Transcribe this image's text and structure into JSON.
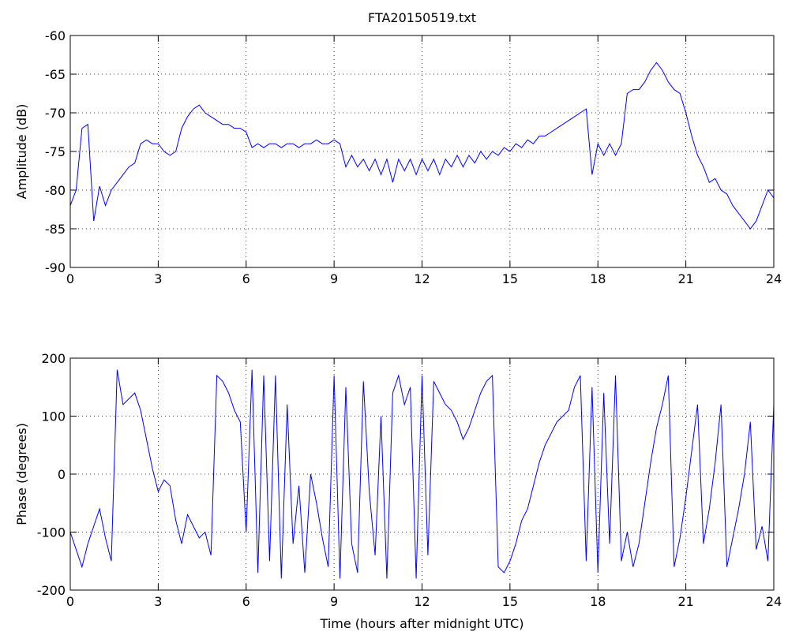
{
  "chart_data": [
    {
      "type": "line",
      "title": "FTA20150519.txt",
      "ylabel": "Amplitude (dB)",
      "color": "#0000ff",
      "grid": true,
      "x": [
        0,
        0.2,
        0.4,
        0.6,
        0.8,
        1,
        1.2,
        1.4,
        1.6,
        1.8,
        2,
        2.2,
        2.4,
        2.6,
        2.8,
        3,
        3.2,
        3.4,
        3.6,
        3.8,
        4,
        4.2,
        4.4,
        4.6,
        4.8,
        5,
        5.2,
        5.4,
        5.6,
        5.8,
        6,
        6.2,
        6.4,
        6.6,
        6.8,
        7,
        7.2,
        7.4,
        7.6,
        7.8,
        8,
        8.2,
        8.4,
        8.6,
        8.8,
        9,
        9.2,
        9.4,
        9.6,
        9.8,
        10,
        10.2,
        10.4,
        10.6,
        10.8,
        11,
        11.2,
        11.4,
        11.6,
        11.8,
        12,
        12.2,
        12.4,
        12.6,
        12.8,
        13,
        13.2,
        13.4,
        13.6,
        13.8,
        14,
        14.2,
        14.4,
        14.6,
        14.8,
        15,
        15.2,
        15.4,
        15.6,
        15.8,
        16,
        16.2,
        16.4,
        16.6,
        16.8,
        17,
        17.2,
        17.4,
        17.6,
        17.8,
        18,
        18.2,
        18.4,
        18.6,
        18.8,
        19,
        19.2,
        19.4,
        19.6,
        19.8,
        20,
        20.2,
        20.4,
        20.6,
        20.8,
        21,
        21.2,
        21.4,
        21.6,
        21.8,
        22,
        22.2,
        22.4,
        22.6,
        22.8,
        23,
        23.2,
        23.4,
        23.6,
        23.8,
        24
      ],
      "values": [
        -82,
        -80,
        -72,
        -71.5,
        -84,
        -79.5,
        -82,
        -80,
        -79,
        -78,
        -77,
        -76.5,
        -74,
        -73.5,
        -74,
        -74,
        -75,
        -75.5,
        -75,
        -72,
        -70.5,
        -69.5,
        -69,
        -70,
        -70.5,
        -71,
        -71.5,
        -71.5,
        -72,
        -72,
        -72.5,
        -74.5,
        -74,
        -74.5,
        -74,
        -74,
        -74.5,
        -74,
        -74,
        -74.5,
        -74,
        -74,
        -73.5,
        -74,
        -74,
        -73.5,
        -74,
        -77,
        -75.5,
        -77,
        -76,
        -77.5,
        -76,
        -78,
        -76,
        -79,
        -76,
        -77.5,
        -76,
        -78,
        -76,
        -77.5,
        -76,
        -78,
        -76,
        -77,
        -75.5,
        -77,
        -75.5,
        -76.5,
        -75,
        -76,
        -75,
        -75.5,
        -74.5,
        -75,
        -74,
        -74.5,
        -73.5,
        -74,
        -73,
        -73,
        -72.5,
        -72,
        -71.5,
        -71,
        -70.5,
        -70,
        -69.5,
        -78,
        -74,
        -75.5,
        -74,
        -75.5,
        -74,
        -67.5,
        -67,
        -67,
        -66,
        -64.5,
        -63.5,
        -64.5,
        -66,
        -67,
        -67.5,
        -70,
        -73,
        -75.5,
        -77,
        -79,
        -78.5,
        -80,
        -80.5,
        -82,
        -83,
        -84,
        -85,
        -84,
        -82,
        -80,
        -81
      ],
      "xlim": [
        0,
        24
      ],
      "xticks": [
        0,
        3,
        6,
        9,
        12,
        15,
        18,
        21,
        24
      ],
      "ylim": [
        -90,
        -60
      ],
      "yticks": [
        -90,
        -85,
        -80,
        -75,
        -70,
        -65,
        -60
      ]
    },
    {
      "type": "line",
      "xlabel": "Time (hours after midnight UTC)",
      "ylabel": "Phase (degrees)",
      "color": "#0000ff",
      "grid": true,
      "x": [
        0,
        0.2,
        0.4,
        0.6,
        0.8,
        1,
        1.2,
        1.4,
        1.6,
        1.8,
        2,
        2.2,
        2.4,
        2.6,
        2.8,
        3,
        3.2,
        3.4,
        3.6,
        3.8,
        4,
        4.2,
        4.4,
        4.6,
        4.8,
        5,
        5.2,
        5.4,
        5.6,
        5.8,
        6,
        6.2,
        6.4,
        6.6,
        6.8,
        7,
        7.2,
        7.4,
        7.6,
        7.8,
        8,
        8.2,
        8.4,
        8.6,
        8.8,
        9,
        9.2,
        9.4,
        9.6,
        9.8,
        10,
        10.2,
        10.4,
        10.6,
        10.8,
        11,
        11.2,
        11.4,
        11.6,
        11.8,
        12,
        12.2,
        12.4,
        12.6,
        12.8,
        13,
        13.2,
        13.4,
        13.6,
        13.8,
        14,
        14.2,
        14.4,
        14.6,
        14.8,
        15,
        15.2,
        15.4,
        15.6,
        15.8,
        16,
        16.2,
        16.4,
        16.6,
        16.8,
        17,
        17.2,
        17.4,
        17.6,
        17.8,
        18,
        18.2,
        18.4,
        18.6,
        18.8,
        19,
        19.2,
        19.4,
        19.6,
        19.8,
        20,
        20.2,
        20.4,
        20.6,
        20.8,
        21,
        21.2,
        21.4,
        21.6,
        21.8,
        22,
        22.2,
        22.4,
        22.6,
        22.8,
        23,
        23.2,
        23.4,
        23.6,
        23.8,
        24
      ],
      "values": [
        -100,
        -130,
        -160,
        -120,
        -90,
        -60,
        -110,
        -150,
        180,
        120,
        130,
        140,
        110,
        60,
        10,
        -30,
        -10,
        -20,
        -80,
        -120,
        -70,
        -90,
        -110,
        -100,
        -140,
        170,
        160,
        140,
        110,
        90,
        -100,
        180,
        -170,
        170,
        -150,
        170,
        -180,
        120,
        -120,
        -20,
        -170,
        0,
        -50,
        -110,
        -160,
        170,
        -180,
        150,
        -120,
        -170,
        160,
        -30,
        -140,
        100,
        -180,
        140,
        170,
        120,
        150,
        -180,
        170,
        -140,
        160,
        140,
        120,
        110,
        90,
        60,
        80,
        110,
        140,
        160,
        170,
        -160,
        -170,
        -150,
        -120,
        -80,
        -60,
        -20,
        20,
        50,
        70,
        90,
        100,
        110,
        150,
        170,
        -150,
        150,
        -170,
        140,
        -120,
        170,
        -150,
        -100,
        -160,
        -120,
        -50,
        20,
        80,
        120,
        170,
        -160,
        -110,
        -40,
        40,
        120,
        -120,
        -60,
        20,
        120,
        -160,
        -110,
        -60,
        0,
        90,
        -130,
        -90,
        -150,
        120
      ],
      "xlim": [
        0,
        24
      ],
      "xticks": [
        0,
        3,
        6,
        9,
        12,
        15,
        18,
        21,
        24
      ],
      "ylim": [
        -200,
        200
      ],
      "yticks": [
        -200,
        -100,
        0,
        100,
        200
      ]
    }
  ]
}
